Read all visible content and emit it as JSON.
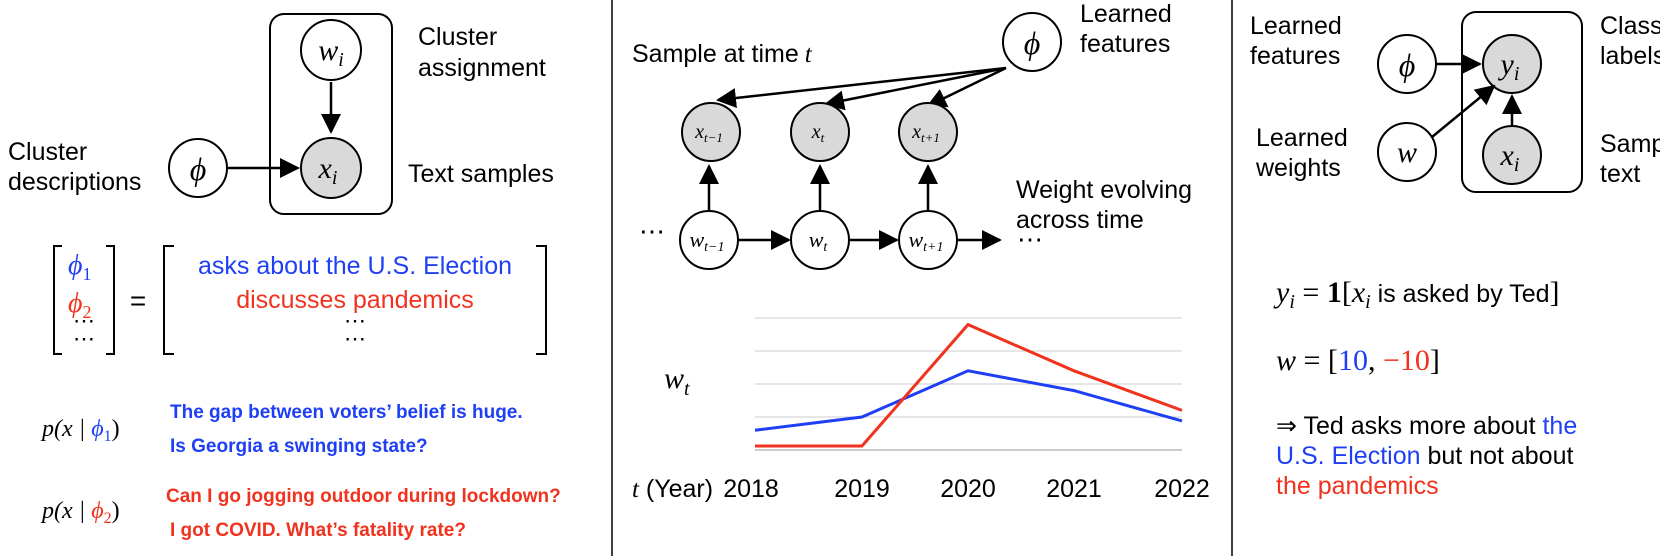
{
  "colors": {
    "blue": "#1f3ff5",
    "red": "#f0321e",
    "node_fill": "#d9d9d9",
    "ink": "#000000",
    "grid": "#cccccc"
  },
  "panel1": {
    "cluster_assignment": [
      "Cluster",
      "assignment"
    ],
    "cluster_descriptions": [
      "Cluster",
      "descriptions"
    ],
    "text_samples": "Text samples",
    "node_w": "w",
    "node_w_sub": "i",
    "node_x": "x",
    "node_x_sub": "i",
    "node_phi": "ϕ",
    "vector": {
      "phi1": "ϕ",
      "phi1_sub": "1",
      "phi2": "ϕ",
      "phi2_sub": "2",
      "dots": "⋯",
      "equals": "=",
      "desc1": "asks about the U.S. Election",
      "desc2": "discusses pandemics",
      "desc_dots": "⋯"
    },
    "px1_label": {
      "pre": "p(x | ",
      "phi": "ϕ",
      "sub": "1",
      "post": ")"
    },
    "px2_label": {
      "pre": "p(x | ",
      "phi": "ϕ",
      "sub": "2",
      "post": ")"
    },
    "samples1": [
      "The gap between voters’ belief is huge.",
      "Is Georgia a swinging state?"
    ],
    "samples2": [
      "Can I go jogging outdoor during lockdown?",
      "I got COVID. What’s fatality rate?"
    ]
  },
  "panel2": {
    "sample_at_time": "Sample at time",
    "sample_t": "t",
    "learned_features": [
      "Learned",
      "features"
    ],
    "phi": "ϕ",
    "x_nodes": [
      {
        "base": "x",
        "sub": "t−1"
      },
      {
        "base": "x",
        "sub": "t"
      },
      {
        "base": "x",
        "sub": "t+1"
      }
    ],
    "w_nodes": [
      {
        "base": "w",
        "sub": "t−1"
      },
      {
        "base": "w",
        "sub": "t"
      },
      {
        "base": "w",
        "sub": "t+1"
      }
    ],
    "ellipsis_left": "⋯",
    "ellipsis_right": "⋯",
    "weight_evolving": [
      "Weight evolving",
      "across time"
    ],
    "wt_label": {
      "base": "w",
      "sub": "t"
    },
    "xaxis_t": "t",
    "xaxis_label": " (Year)"
  },
  "chart_data": {
    "type": "line",
    "x": [
      "2018",
      "2019",
      "2020",
      "2021",
      "2022"
    ],
    "series": [
      {
        "color": "#1f3ff5",
        "values": [
          0.15,
          0.25,
          0.6,
          0.45,
          0.22
        ]
      },
      {
        "color": "#f0321e",
        "values": [
          0.03,
          0.03,
          0.95,
          0.6,
          0.3
        ]
      }
    ],
    "ylim": [
      0,
      1
    ],
    "grid": true,
    "ylabel": "",
    "title": ""
  },
  "panel3": {
    "learned_features": [
      "Learned",
      "features"
    ],
    "learned_weights": [
      "Learned",
      "weights"
    ],
    "class_labels": [
      "Class",
      "labels"
    ],
    "sample_text": [
      "Sample",
      "text"
    ],
    "phi": "ϕ",
    "w": "w",
    "y": "y",
    "y_sub": "i",
    "x": "x",
    "x_sub": "i",
    "eq1": {
      "y": "y",
      "sub": "i",
      "eq": " = ",
      "one": "1",
      "lb": "[",
      "x": "x",
      "xsub": "i",
      "text": " is asked by Ted",
      "rb": "]"
    },
    "eq2": {
      "w": "w",
      "eq": " = [",
      "v1": "10",
      "comma": ", ",
      "v2": "−10",
      "rb": "]"
    },
    "conclusion": {
      "line1_black": "⇒ Ted asks more about ",
      "line1_blue": "the",
      "line2_blue": "U.S. Election",
      "line2_black": " but not about",
      "line3_red": "the pandemics"
    }
  }
}
